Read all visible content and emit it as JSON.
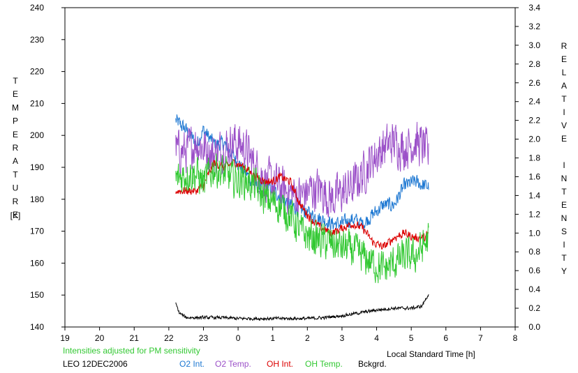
{
  "chart_data": {
    "type": "line",
    "title": "",
    "station": "LEO 12DEC2006",
    "note": "Intensities adjusted for PM sensitivity",
    "xlabel": "Local Standard Time [h]",
    "ylabel_left": "TEMPERATURE",
    "ylabel_left_unit": "[K]",
    "ylabel_right": "RELATIVE INTENSITY",
    "x_ticks": [
      19,
      20,
      21,
      22,
      23,
      0,
      1,
      2,
      3,
      4,
      5,
      6,
      7,
      8
    ],
    "xlim": [
      19,
      32
    ],
    "ylim_left": [
      140,
      240
    ],
    "ylim_right": [
      0.0,
      3.4
    ],
    "y_ticks_left": [
      140,
      150,
      160,
      170,
      180,
      190,
      200,
      210,
      220,
      230,
      240
    ],
    "y_ticks_right": [
      "0.0",
      "0.2",
      "0.4",
      "0.6",
      "0.8",
      "1.0",
      "1.2",
      "1.4",
      "1.6",
      "1.8",
      "2.0",
      "2.2",
      "2.4",
      "2.6",
      "2.8",
      "3.0",
      "3.2",
      "3.4"
    ],
    "grid": false,
    "legend_position": "bottom",
    "series": [
      {
        "name": "O2 Int.",
        "color": "#1e78d2",
        "axis": "right",
        "x": [
          22.2,
          22.5,
          22.8,
          23.0,
          23.3,
          23.6,
          23.9,
          24.2,
          24.5,
          24.8,
          25.2,
          25.5,
          25.8,
          26.1,
          26.4,
          26.7,
          27.0,
          27.3,
          27.6,
          27.9,
          28.2,
          28.5,
          28.8,
          29.1,
          29.4,
          29.5
        ],
        "y": [
          2.2,
          2.1,
          1.95,
          2.1,
          1.95,
          1.95,
          1.8,
          1.65,
          1.5,
          1.5,
          1.4,
          1.3,
          1.25,
          1.2,
          1.15,
          1.1,
          1.1,
          1.15,
          1.1,
          1.2,
          1.3,
          1.3,
          1.5,
          1.55,
          1.5,
          1.5
        ],
        "noise": 0.07
      },
      {
        "name": "O2 Temp.",
        "color": "#9b50c8",
        "axis": "left",
        "x": [
          22.2,
          22.5,
          22.8,
          23.0,
          23.3,
          23.6,
          23.9,
          24.2,
          24.5,
          24.8,
          25.2,
          25.5,
          25.8,
          26.1,
          26.4,
          26.7,
          27.0,
          27.3,
          27.6,
          27.9,
          28.2,
          28.5,
          28.8,
          29.1,
          29.4,
          29.5
        ],
        "y": [
          195,
          195,
          198,
          196,
          194,
          196,
          198,
          196,
          190,
          186,
          184,
          182,
          181,
          183,
          183,
          180,
          182,
          184,
          188,
          193,
          196,
          198,
          196,
          198,
          196,
          193
        ],
        "noise": 6
      },
      {
        "name": "OH Int.",
        "color": "#dc0000",
        "axis": "right",
        "x": [
          22.2,
          22.5,
          22.8,
          23.0,
          23.3,
          23.6,
          23.9,
          24.2,
          24.5,
          24.8,
          25.0,
          25.2,
          25.5,
          25.8,
          26.1,
          26.4,
          26.7,
          27.0,
          27.3,
          27.6,
          27.9,
          28.2,
          28.5,
          28.8,
          29.1,
          29.4,
          29.5
        ],
        "y": [
          1.45,
          1.45,
          1.45,
          1.5,
          1.75,
          1.7,
          1.75,
          1.7,
          1.6,
          1.55,
          1.55,
          1.6,
          1.55,
          1.3,
          1.15,
          1.05,
          1.0,
          1.05,
          1.1,
          1.05,
          0.9,
          0.85,
          0.95,
          1.0,
          0.95,
          0.95,
          1.0
        ],
        "noise": 0.04
      },
      {
        "name": "OH Temp.",
        "color": "#32c832",
        "axis": "left",
        "x": [
          22.2,
          22.5,
          22.8,
          23.0,
          23.3,
          23.6,
          23.9,
          24.2,
          24.5,
          24.8,
          25.2,
          25.5,
          25.8,
          26.1,
          26.4,
          26.7,
          27.0,
          27.3,
          27.6,
          27.9,
          28.2,
          28.5,
          28.8,
          29.1,
          29.4,
          29.5
        ],
        "y": [
          186,
          188,
          188,
          185,
          190,
          188,
          186,
          186,
          184,
          180,
          178,
          175,
          170,
          168,
          167,
          166,
          165,
          164,
          162,
          160,
          158,
          160,
          162,
          162,
          166,
          168
        ],
        "noise": 5
      },
      {
        "name": "Bckgrd.",
        "color": "#000000",
        "axis": "right",
        "x": [
          22.2,
          22.3,
          22.5,
          23.0,
          23.5,
          24.0,
          24.5,
          25.0,
          25.5,
          26.0,
          26.5,
          27.0,
          27.5,
          28.0,
          28.5,
          29.0,
          29.3,
          29.5
        ],
        "y": [
          0.25,
          0.15,
          0.1,
          0.1,
          0.1,
          0.09,
          0.09,
          0.09,
          0.09,
          0.09,
          0.1,
          0.12,
          0.15,
          0.18,
          0.2,
          0.2,
          0.22,
          0.35
        ],
        "noise": 0.015
      }
    ]
  }
}
